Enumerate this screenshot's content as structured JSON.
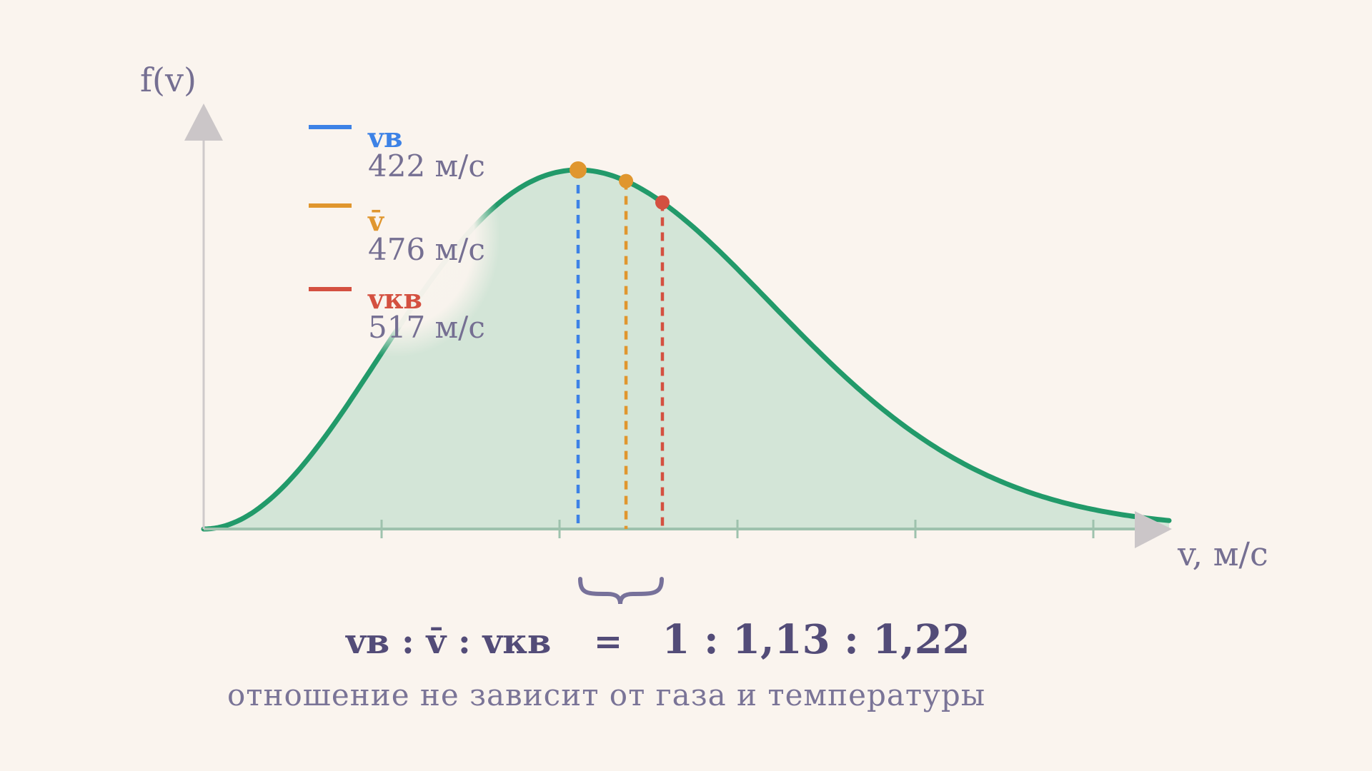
{
  "chart_data": {
    "type": "area",
    "ylabel": "f(v)",
    "xlabel": "v, м/с",
    "ylim": [
      0,
      1.0
    ],
    "fill_color": "#d3e5d7",
    "line_color": "#229a6a",
    "legend_position": "top-left",
    "markers": [
      {
        "name": "vв",
        "label": "422 м/с",
        "v": 422,
        "color": "#3d82e6"
      },
      {
        "name": "v̄",
        "label": "476 м/с",
        "v": 476,
        "color": "#e0962e"
      },
      {
        "name": "vкв",
        "label": "517 м/с",
        "v": 517,
        "color": "#d45040"
      }
    ],
    "ratio": {
      "lhs": "vв : v̄ : vкв",
      "eq": "=",
      "rhs": "1 : 1,13 : 1,22"
    },
    "note": "отношение не зависит от газа и температуры"
  }
}
